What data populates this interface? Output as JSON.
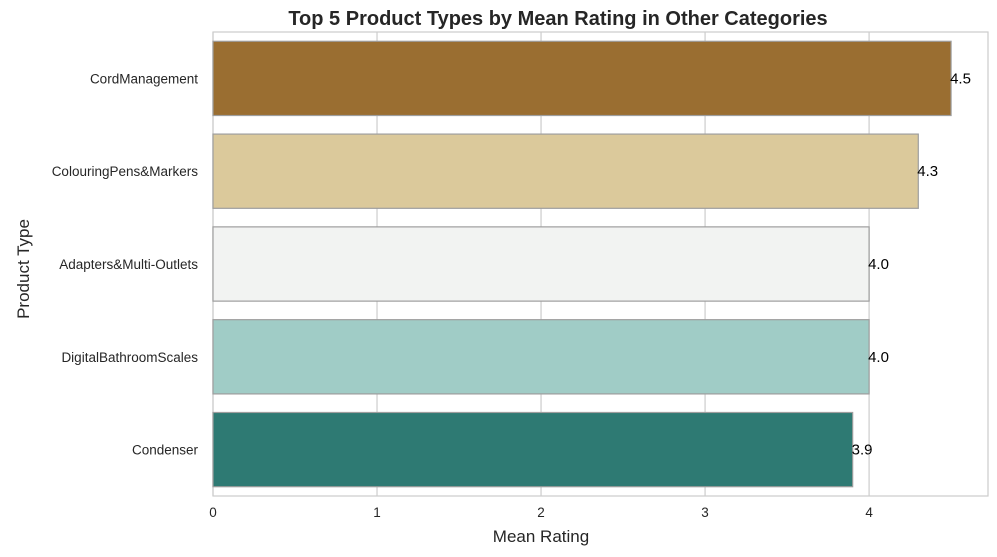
{
  "chart_data": {
    "type": "bar",
    "orientation": "horizontal",
    "title": "Top 5 Product Types by Mean Rating in Other Categories",
    "xlabel": "Mean Rating",
    "ylabel": "Product Type",
    "categories": [
      "CordManagement",
      "ColouringPens&Markers",
      "Adapters&Multi-Outlets",
      "DigitalBathroomScales",
      "Condenser"
    ],
    "values": [
      4.5,
      4.3,
      4.0,
      4.0,
      3.9
    ],
    "data_labels": [
      "4.5",
      "4.3",
      "4.0",
      "4.0",
      "3.9"
    ],
    "xticks": [
      0,
      1,
      2,
      3,
      4
    ],
    "xtick_labels": [
      "0",
      "1",
      "2",
      "3",
      "4"
    ],
    "xlim": [
      0,
      4.725
    ],
    "grid": true,
    "colors": [
      "#9a6e31",
      "#dbc99b",
      "#f2f3f2",
      "#a0ccc6",
      "#2e7a73"
    ]
  }
}
